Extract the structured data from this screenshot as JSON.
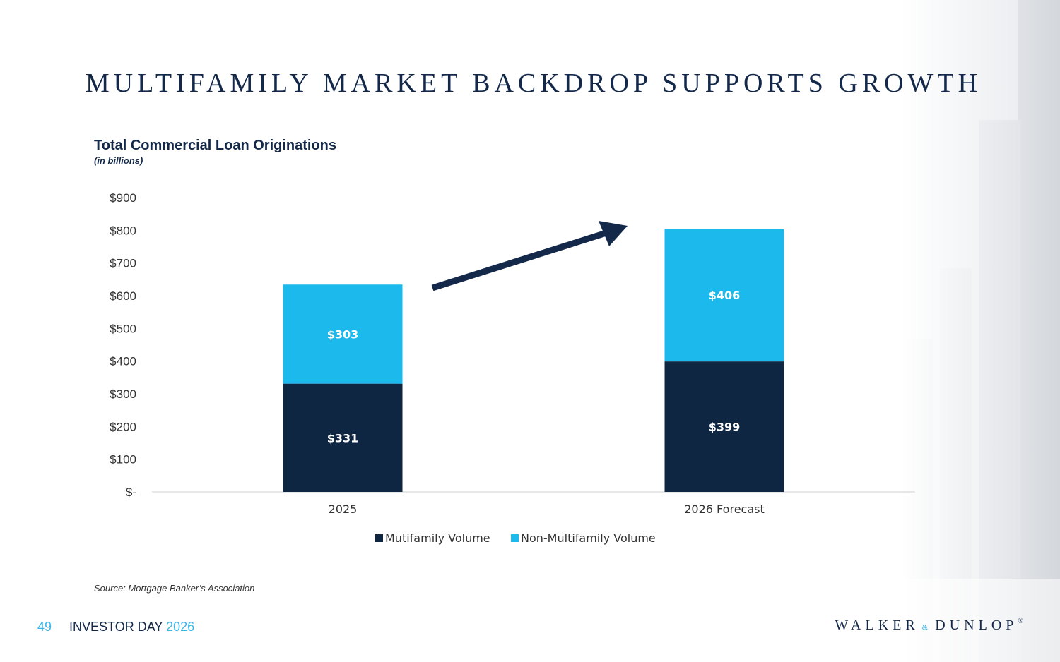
{
  "slide": {
    "title": "MULTIFAMILY MARKET BACKDROP SUPPORTS GROWTH",
    "source": "Source: Mortgage Banker’s Association",
    "footer": {
      "page": "49",
      "event": "INVESTOR DAY",
      "year": "2026"
    },
    "logo": {
      "left": "WALKER",
      "amp": "&",
      "right": "DUNLOP",
      "mark": "®"
    }
  },
  "colors": {
    "navy": "#0f2642",
    "cyan": "#1bb9ec",
    "text": "#14294a"
  },
  "chart_data": {
    "type": "bar",
    "stacked": true,
    "title": "Total Commercial Loan Originations",
    "subtitle": "(in billions)",
    "categories": [
      "2025",
      "2026 Forecast"
    ],
    "series": [
      {
        "name": "Mutifamily Volume",
        "values": [
          331,
          399
        ],
        "labels": [
          "$331",
          "$399"
        ],
        "color": "#0f2642"
      },
      {
        "name": "Non-Multifamily Volume",
        "values": [
          303,
          406
        ],
        "labels": [
          "$303",
          "$406"
        ],
        "color": "#1bb9ec"
      }
    ],
    "ylim": [
      0,
      900
    ],
    "yticks": [
      "$-",
      "$100",
      "$200",
      "$300",
      "$400",
      "$500",
      "$600",
      "$700",
      "$800",
      "$900"
    ],
    "legend": "bottom",
    "annotation": "upward-arrow"
  }
}
